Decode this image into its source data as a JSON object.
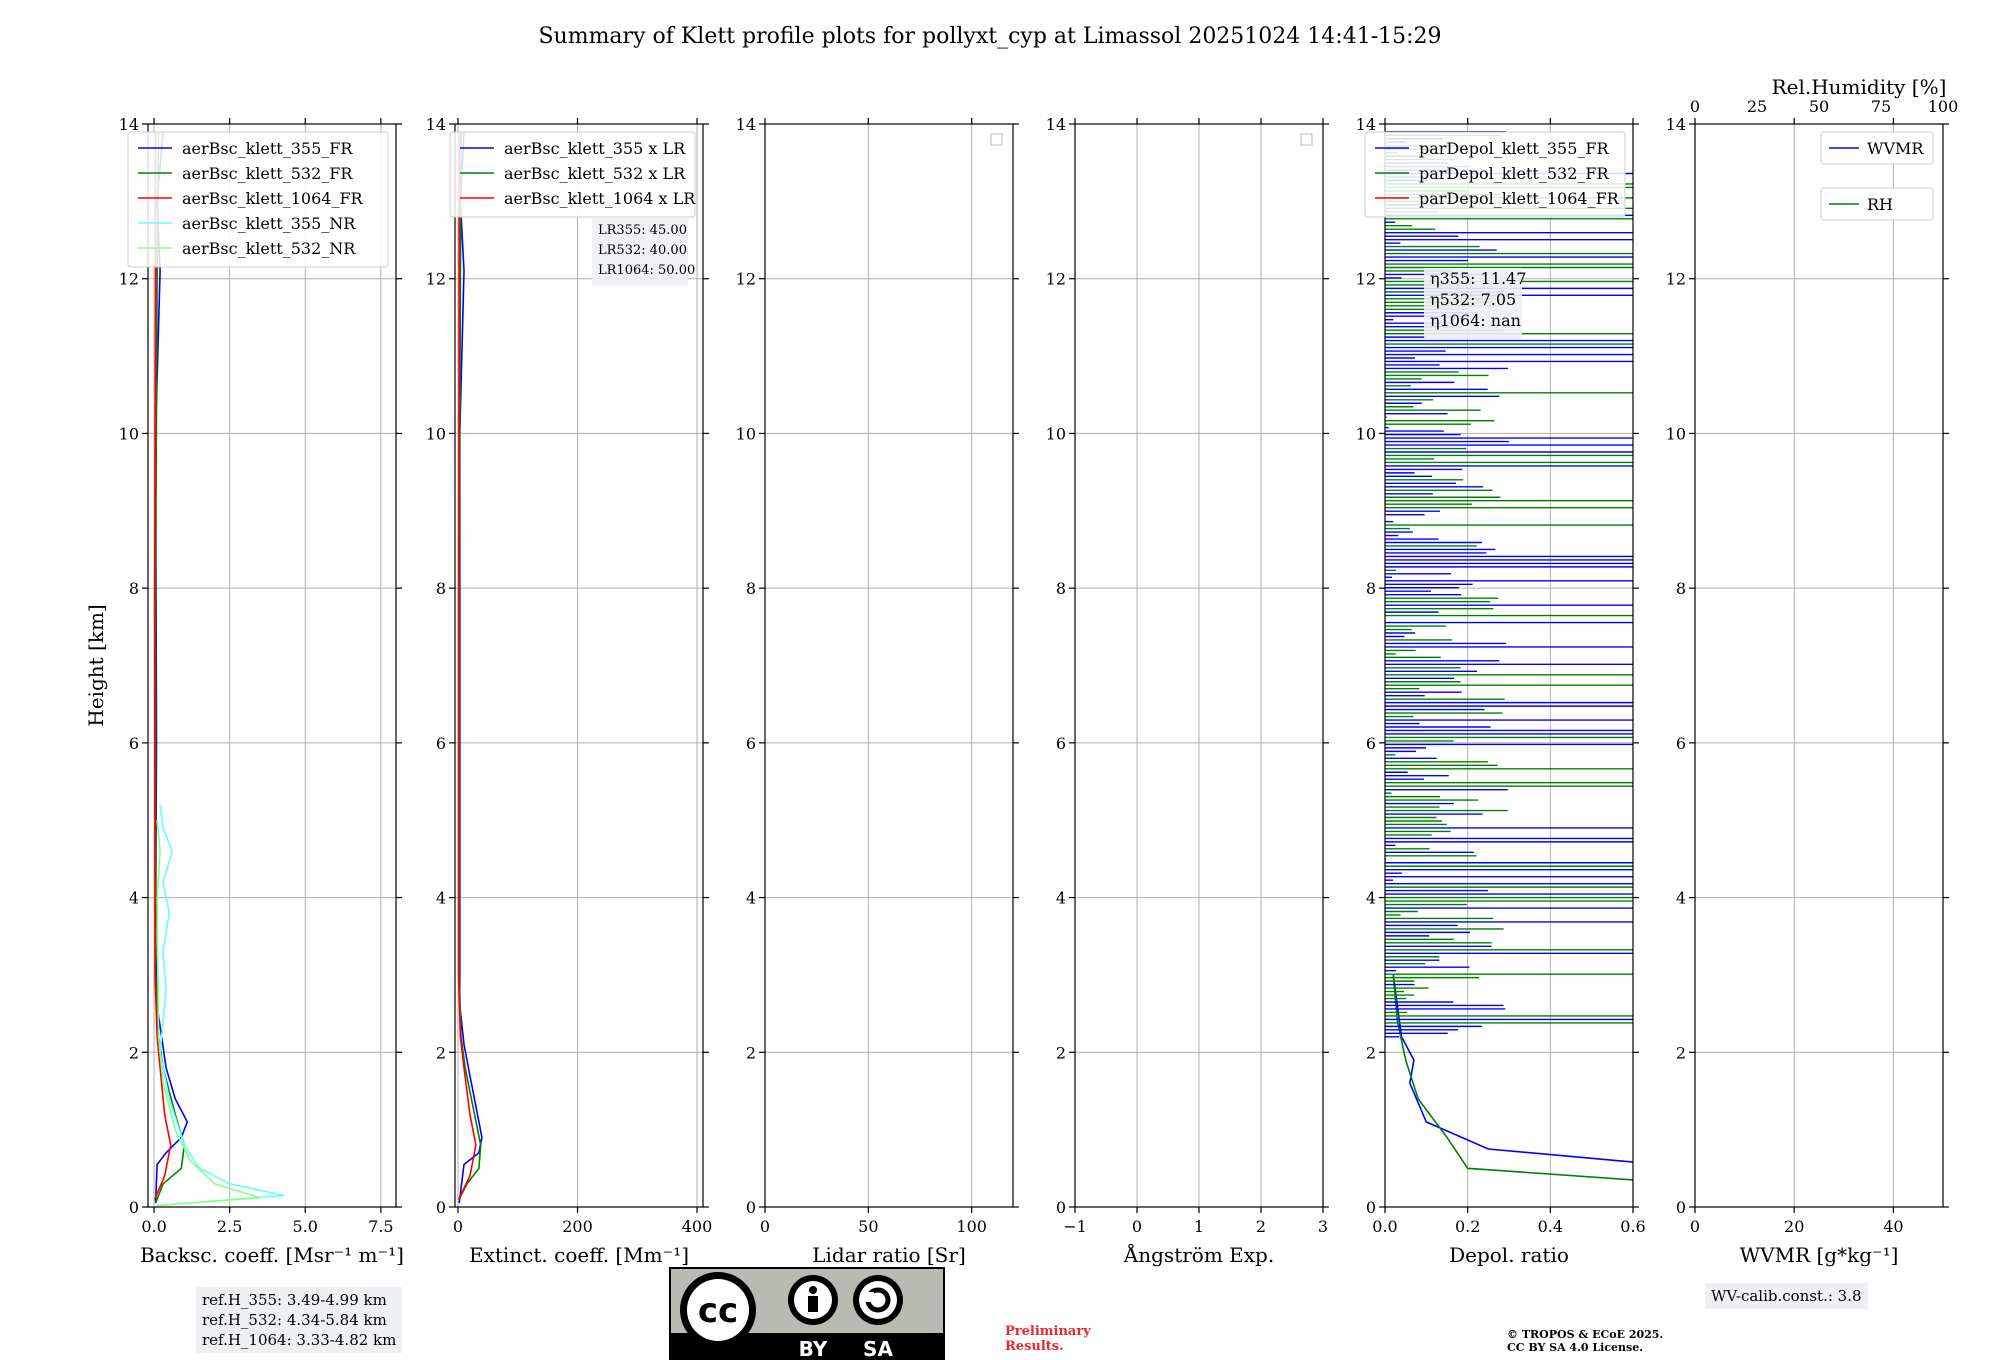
{
  "title": "Summary of Klett profile plots for pollyxt_cyp at Limassol 20251024 14:41-15:29",
  "chart_data": [
    {
      "type": "line",
      "panel": "backscatter",
      "xlabel": "Backsc. coeff. [Msr⁻¹ m⁻¹]",
      "ylabel": "Height [km]",
      "xlim": [
        -0.2,
        8
      ],
      "ylim": [
        0,
        14
      ],
      "xticks": [
        0,
        2.5,
        5,
        7.5
      ],
      "xtick_labels": [
        "0.0",
        "2.5",
        "5.0",
        "7.5"
      ],
      "yticks": [
        0,
        2,
        4,
        6,
        8,
        10,
        12,
        14
      ],
      "legend": "top-right",
      "series": [
        {
          "name": "aerBsc_klett_355_FR",
          "color": "#0000ff",
          "points": [
            [
              0.05,
              0.05
            ],
            [
              0.1,
              0.55
            ],
            [
              0.4,
              0.7
            ],
            [
              0.9,
              0.9
            ],
            [
              1.1,
              1.1
            ],
            [
              0.7,
              1.4
            ],
            [
              0.4,
              1.8
            ],
            [
              0.25,
              2.2
            ],
            [
              0.1,
              2.6
            ],
            [
              0.05,
              3.5
            ],
            [
              0.08,
              6
            ],
            [
              0.05,
              10
            ],
            [
              0.2,
              12.1
            ],
            [
              0.1,
              13
            ],
            [
              0.3,
              13.9
            ]
          ]
        },
        {
          "name": "aerBsc_klett_532_FR",
          "color": "#008000",
          "points": [
            [
              0.05,
              0.05
            ],
            [
              0.3,
              0.3
            ],
            [
              0.9,
              0.5
            ],
            [
              1.0,
              0.8
            ],
            [
              0.7,
              1.2
            ],
            [
              0.3,
              1.8
            ],
            [
              0.15,
              2.2
            ],
            [
              0.05,
              3
            ],
            [
              0.05,
              8
            ],
            [
              0.1,
              12
            ],
            [
              0.15,
              13.9
            ]
          ]
        },
        {
          "name": "aerBsc_klett_1064_FR",
          "color": "#ff0000",
          "points": [
            [
              0.02,
              0.1
            ],
            [
              0.35,
              0.4
            ],
            [
              0.55,
              0.8
            ],
            [
              0.35,
              1.2
            ],
            [
              0.2,
              1.8
            ],
            [
              0.1,
              2.2
            ],
            [
              0.03,
              3
            ],
            [
              0.02,
              8
            ],
            [
              0.05,
              12
            ],
            [
              0.05,
              13.9
            ]
          ]
        },
        {
          "name": "aerBsc_klett_355_NR",
          "color": "#66ffff",
          "points": [
            [
              0.1,
              0.02
            ],
            [
              4.3,
              0.15
            ],
            [
              2.5,
              0.3
            ],
            [
              1.5,
              0.5
            ],
            [
              1.0,
              0.8
            ],
            [
              0.5,
              1.4
            ],
            [
              0.2,
              2.0
            ],
            [
              0.4,
              2.8
            ],
            [
              0.3,
              3.3
            ],
            [
              0.5,
              3.8
            ],
            [
              0.3,
              4.2
            ],
            [
              0.6,
              4.6
            ],
            [
              0.3,
              4.9
            ],
            [
              0.2,
              5.2
            ]
          ]
        },
        {
          "name": "aerBsc_klett_532_NR",
          "color": "#88ff88",
          "points": [
            [
              0.1,
              0.02
            ],
            [
              3.5,
              0.12
            ],
            [
              2.0,
              0.3
            ],
            [
              1.2,
              0.6
            ],
            [
              0.7,
              1.0
            ],
            [
              0.3,
              1.6
            ],
            [
              0.15,
              2.2
            ],
            [
              0.1,
              4.0
            ],
            [
              0.2,
              4.6
            ],
            [
              0.1,
              5.0
            ]
          ]
        }
      ]
    },
    {
      "type": "line",
      "panel": "extinction",
      "xlabel": "Extinct. coeff. [Mm⁻¹]",
      "xlim": [
        -5,
        410
      ],
      "ylim": [
        0,
        14
      ],
      "xticks": [
        0,
        200,
        400
      ],
      "xtick_labels": [
        "0",
        "200",
        "400"
      ],
      "yticks": [
        0,
        2,
        4,
        6,
        8,
        10,
        12,
        14
      ],
      "legend": "top-right",
      "annotation": [
        "LR355: 45.00",
        "LR532: 40.00",
        "LR1064: 50.00"
      ],
      "series": [
        {
          "name": "aerBsc_klett_355 x LR",
          "color": "#0000ff",
          "points": [
            [
              2,
              0.05
            ],
            [
              10,
              0.55
            ],
            [
              35,
              0.7
            ],
            [
              40,
              0.9
            ],
            [
              30,
              1.3
            ],
            [
              20,
              1.7
            ],
            [
              10,
              2.1
            ],
            [
              3,
              2.6
            ],
            [
              3,
              6
            ],
            [
              3,
              10
            ],
            [
              10,
              12.1
            ],
            [
              4,
              13
            ],
            [
              10,
              13.9
            ]
          ]
        },
        {
          "name": "aerBsc_klett_532 x LR",
          "color": "#008000",
          "points": [
            [
              2,
              0.1
            ],
            [
              15,
              0.3
            ],
            [
              35,
              0.5
            ],
            [
              38,
              0.8
            ],
            [
              25,
              1.3
            ],
            [
              12,
              1.8
            ],
            [
              5,
              2.2
            ],
            [
              2,
              3
            ],
            [
              2,
              8
            ],
            [
              4,
              12
            ],
            [
              5,
              13.9
            ]
          ]
        },
        {
          "name": "aerBsc_klett_1064 x LR",
          "color": "#ff0000",
          "points": [
            [
              1,
              0.1
            ],
            [
              20,
              0.4
            ],
            [
              30,
              0.8
            ],
            [
              20,
              1.2
            ],
            [
              10,
              1.8
            ],
            [
              4,
              2.2
            ],
            [
              1,
              3
            ],
            [
              1,
              8
            ],
            [
              2,
              12
            ],
            [
              2,
              13.9
            ]
          ]
        }
      ]
    },
    {
      "type": "line",
      "panel": "lidar_ratio",
      "xlabel": "Lidar ratio [Sr]",
      "xlim": [
        0,
        120
      ],
      "ylim": [
        0,
        14
      ],
      "xticks": [
        0,
        50,
        100
      ],
      "xtick_labels": [
        "0",
        "50",
        "100"
      ],
      "yticks": [
        0,
        2,
        4,
        6,
        8,
        10,
        12,
        14
      ],
      "legend": "top-right",
      "series": []
    },
    {
      "type": "line",
      "panel": "angstrom",
      "xlabel": "Ångström Exp.",
      "xlim": [
        -1,
        3
      ],
      "ylim": [
        0,
        14
      ],
      "xticks": [
        -1,
        0,
        1,
        2,
        3
      ],
      "xtick_labels": [
        "−1",
        "0",
        "1",
        "2",
        "3"
      ],
      "yticks": [
        0,
        2,
        4,
        6,
        8,
        10,
        12,
        14
      ],
      "legend": "top-right",
      "series": []
    },
    {
      "type": "line",
      "panel": "depol",
      "xlabel": "Depol. ratio",
      "xlim": [
        0,
        0.6
      ],
      "ylim": [
        0,
        14
      ],
      "xticks": [
        0,
        0.2,
        0.4,
        0.6
      ],
      "xtick_labels": [
        "0.0",
        "0.2",
        "0.4",
        "0.6"
      ],
      "yticks": [
        0,
        2,
        4,
        6,
        8,
        10,
        12,
        14
      ],
      "legend": "top-right",
      "annotation": [
        "η355: 11.47",
        "η532: 7.05",
        "η1064: nan"
      ],
      "series": [
        {
          "name": "parDepol_klett_355_FR",
          "color": "#0000ff",
          "points": [
            [
              0.6,
              0.58
            ],
            [
              0.25,
              0.75
            ],
            [
              0.1,
              1.1
            ],
            [
              0.06,
              1.6
            ],
            [
              0.07,
              1.9
            ],
            [
              0.04,
              2.2
            ],
            [
              0.03,
              2.6
            ],
            [
              0.02,
              3.0
            ]
          ]
        },
        {
          "name": "parDepol_klett_532_FR",
          "color": "#008000",
          "points": [
            [
              0.6,
              0.35
            ],
            [
              0.2,
              0.5
            ],
            [
              0.15,
              0.9
            ],
            [
              0.08,
              1.4
            ],
            [
              0.05,
              1.9
            ],
            [
              0.03,
              2.4
            ],
            [
              0.02,
              3.0
            ]
          ]
        },
        {
          "name": "parDepol_klett_1064_FR",
          "color": "#ff0000",
          "points": []
        }
      ]
    },
    {
      "type": "line",
      "panel": "wvmr",
      "xlabel": "WVMR [g*kg⁻¹]",
      "xlim": [
        0,
        50
      ],
      "ylim": [
        0,
        14
      ],
      "xticks": [
        0,
        20,
        40
      ],
      "xtick_labels": [
        "0",
        "20",
        "40"
      ],
      "top_xlabel": "Rel.Humidity [%]",
      "top_xlim": [
        0,
        100
      ],
      "top_xticks": [
        0,
        25,
        50,
        75,
        100
      ],
      "top_xtick_labels": [
        "0",
        "25",
        "50",
        "75",
        "100"
      ],
      "yticks": [
        0,
        2,
        4,
        6,
        8,
        10,
        12,
        14
      ],
      "legend": "top-right",
      "series": [
        {
          "name": "WVMR",
          "color": "#0000ff",
          "points": []
        },
        {
          "name": "RH",
          "color": "#008000",
          "points": []
        }
      ]
    }
  ],
  "notes": {
    "refh": [
      "ref.H_355: 3.49-4.99 km",
      "ref.H_532: 4.34-5.84 km",
      "ref.H_1064: 3.33-4.82 km"
    ],
    "wv_calib": "WV-calib.const.: 3.8",
    "preliminary": [
      "Preliminary",
      "Results."
    ],
    "copyright": [
      "© TROPOS & ECoE 2025.",
      "CC BY SA 4.0 License."
    ]
  },
  "license_badge": {
    "cc": "cc",
    "by": "BY",
    "sa": "SA"
  },
  "colors": {
    "blue": "#0000ff",
    "green": "#008000",
    "red": "#ff0000",
    "cyan": "#66ffff",
    "lightgreen": "#88ff88",
    "grid": "#b0b0b0",
    "prelim": "#e8292c"
  }
}
